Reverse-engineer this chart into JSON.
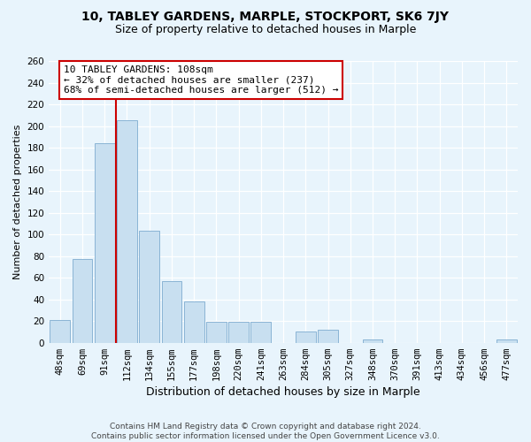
{
  "title": "10, TABLEY GARDENS, MARPLE, STOCKPORT, SK6 7JY",
  "subtitle": "Size of property relative to detached houses in Marple",
  "xlabel": "Distribution of detached houses by size in Marple",
  "ylabel": "Number of detached properties",
  "bar_color": "#c8dff0",
  "bar_edge_color": "#8ab4d4",
  "background_color": "#e8f4fc",
  "grid_color": "#ffffff",
  "categories": [
    "48sqm",
    "69sqm",
    "91sqm",
    "112sqm",
    "134sqm",
    "155sqm",
    "177sqm",
    "198sqm",
    "220sqm",
    "241sqm",
    "263sqm",
    "284sqm",
    "305sqm",
    "327sqm",
    "348sqm",
    "370sqm",
    "391sqm",
    "413sqm",
    "434sqm",
    "456sqm",
    "477sqm"
  ],
  "values": [
    21,
    77,
    184,
    205,
    103,
    57,
    38,
    19,
    19,
    19,
    0,
    10,
    12,
    0,
    3,
    0,
    0,
    0,
    0,
    0,
    3
  ],
  "ylim": [
    0,
    260
  ],
  "yticks": [
    0,
    20,
    40,
    60,
    80,
    100,
    120,
    140,
    160,
    180,
    200,
    220,
    240,
    260
  ],
  "vline_color": "#cc0000",
  "vline_x": 2.5,
  "annotation_line1": "10 TABLEY GARDENS: 108sqm",
  "annotation_line2": "← 32% of detached houses are smaller (237)",
  "annotation_line3": "68% of semi-detached houses are larger (512) →",
  "annotation_box_facecolor": "#ffffff",
  "annotation_box_edgecolor": "#cc0000",
  "footer_line1": "Contains HM Land Registry data © Crown copyright and database right 2024.",
  "footer_line2": "Contains public sector information licensed under the Open Government Licence v3.0.",
  "title_fontsize": 10,
  "subtitle_fontsize": 9,
  "ylabel_fontsize": 8,
  "xlabel_fontsize": 9,
  "tick_fontsize": 7.5,
  "footer_fontsize": 6.5,
  "annotation_fontsize": 8
}
